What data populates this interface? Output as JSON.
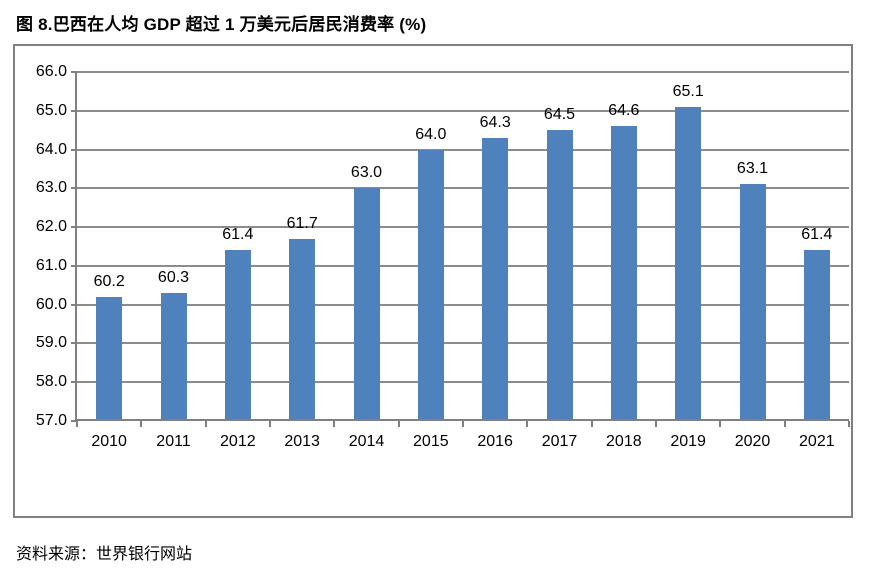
{
  "title": "图 8.巴西在人均 GDP 超过 1 万美元后居民消费率 (%)",
  "source": "资料来源：世界银行网站",
  "colors": {
    "bar": "#4F81BD",
    "frame": "#808080",
    "grid": "#8C8C8C",
    "text": "#000000",
    "background": "#FFFFFF"
  },
  "chart_data": {
    "type": "bar",
    "title": "图 8.巴西在人均 GDP 超过 1 万美元后居民消费率 (%)",
    "categories": [
      "2010",
      "2011",
      "2012",
      "2013",
      "2014",
      "2015",
      "2016",
      "2017",
      "2018",
      "2019",
      "2020",
      "2021"
    ],
    "values": [
      60.2,
      60.3,
      61.4,
      61.7,
      63.0,
      64.0,
      64.3,
      64.5,
      64.6,
      65.1,
      63.1,
      61.4
    ],
    "data_labels": [
      "60.2",
      "60.3",
      "61.4",
      "61.7",
      "63.0",
      "64.0",
      "64.3",
      "64.5",
      "64.6",
      "65.1",
      "63.1",
      "61.4"
    ],
    "xlabel": "",
    "ylabel": "",
    "ylim": [
      57.0,
      66.0
    ],
    "ytick_step": 1.0,
    "ytick_labels": [
      "57.0",
      "58.0",
      "59.0",
      "60.0",
      "61.0",
      "62.0",
      "63.0",
      "64.0",
      "65.0",
      "66.0"
    ],
    "grid": true,
    "legend": "none"
  }
}
